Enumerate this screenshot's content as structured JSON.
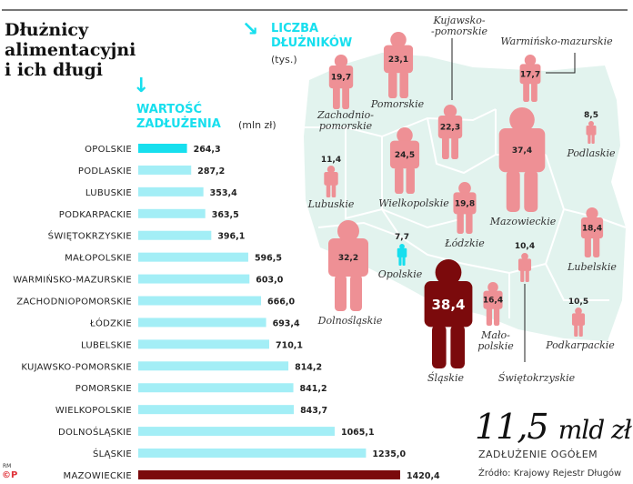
{
  "title": "Dłużnicy\nalimentacyjni\ni ich długi",
  "colors": {
    "accent": "#17dfee",
    "bar": "#a3eef6",
    "max": "#7b0a0c",
    "figure": "#ee9095",
    "map": "#e2f3ee"
  },
  "chart_data": [
    {
      "type": "bar",
      "orientation": "horizontal",
      "title": "WARTOŚĆ\nZADŁUŻENIA",
      "unit": "(mln zł)",
      "categories": [
        "OPOLSKIE",
        "PODLASKIE",
        "LUBUSKIE",
        "PODKARPACKIE",
        "ŚWIĘTOKRZYSKIE",
        "MAŁOPOLSKIE",
        "WARMIŃSKO-MAZURSKIE",
        "ZACHODNIOPOMORSKIE",
        "ŁÓDZKIE",
        "LUBELSKIE",
        "KUJAWSKO-POMORSKIE",
        "POMORSKIE",
        "WIELKOPOLSKIE",
        "DOLNOŚLĄSKIE",
        "ŚLĄSKIE",
        "MAZOWIECKIE"
      ],
      "values": [
        264.3,
        287.2,
        353.4,
        363.5,
        396.1,
        596.5,
        603.0,
        666.0,
        693.4,
        710.1,
        814.2,
        841.2,
        843.7,
        1065.1,
        1235.0,
        1420.4
      ],
      "value_labels": [
        "264,3",
        "287,2",
        "353,4",
        "363,5",
        "396,1",
        "596,5",
        "603,0",
        "666,0",
        "693,4",
        "710,1",
        "814,2",
        "841,2",
        "843,7",
        "1065,1",
        "1235,0",
        "1420,4"
      ]
    },
    {
      "type": "pictogram-map",
      "title": "LICZBA\nDŁUŻNIKÓW",
      "unit": "(tys.)",
      "regions": [
        {
          "name": "Zachodnio-\npomorskie",
          "value": 19.7,
          "label": "19,7"
        },
        {
          "name": "Pomorskie",
          "value": 23.1,
          "label": "23,1"
        },
        {
          "name": "Kujawsko-\n-pomorskie",
          "value": 22.3,
          "label": "22,3"
        },
        {
          "name": "Warmińsko-mazurskie",
          "value": 17.7,
          "label": "17,7"
        },
        {
          "name": "Mazowieckie",
          "value": 37.4,
          "label": "37,4"
        },
        {
          "name": "Podlaskie",
          "value": 8.5,
          "label": "8,5"
        },
        {
          "name": "Lubuskie",
          "value": 11.4,
          "label": "11,4"
        },
        {
          "name": "Wielkopolskie",
          "value": 24.5,
          "label": "24,5"
        },
        {
          "name": "Łódzkie",
          "value": 19.8,
          "label": "19,8"
        },
        {
          "name": "Lubelskie",
          "value": 18.4,
          "label": "18,4"
        },
        {
          "name": "Dolnośląskie",
          "value": 32.2,
          "label": "32,2"
        },
        {
          "name": "Opolskie",
          "value": 7.7,
          "label": "7,7"
        },
        {
          "name": "Śląskie",
          "value": 38.4,
          "label": "38,4"
        },
        {
          "name": "Mało-\npolskie",
          "value": 16.4,
          "label": "16,4"
        },
        {
          "name": "Świętokrzyskie",
          "value": 10.4,
          "label": "10,4"
        },
        {
          "name": "Podkarpackie",
          "value": 10.5,
          "label": "10,5"
        }
      ]
    }
  ],
  "total": {
    "value": "11,5",
    "unit": "mld zł",
    "label": "ZADŁUŻENIE OGÓŁEM"
  },
  "source": "Źródło: Krajowy Rejestr Długów",
  "credit": {
    "rm": "RM",
    "logo": "©P"
  }
}
